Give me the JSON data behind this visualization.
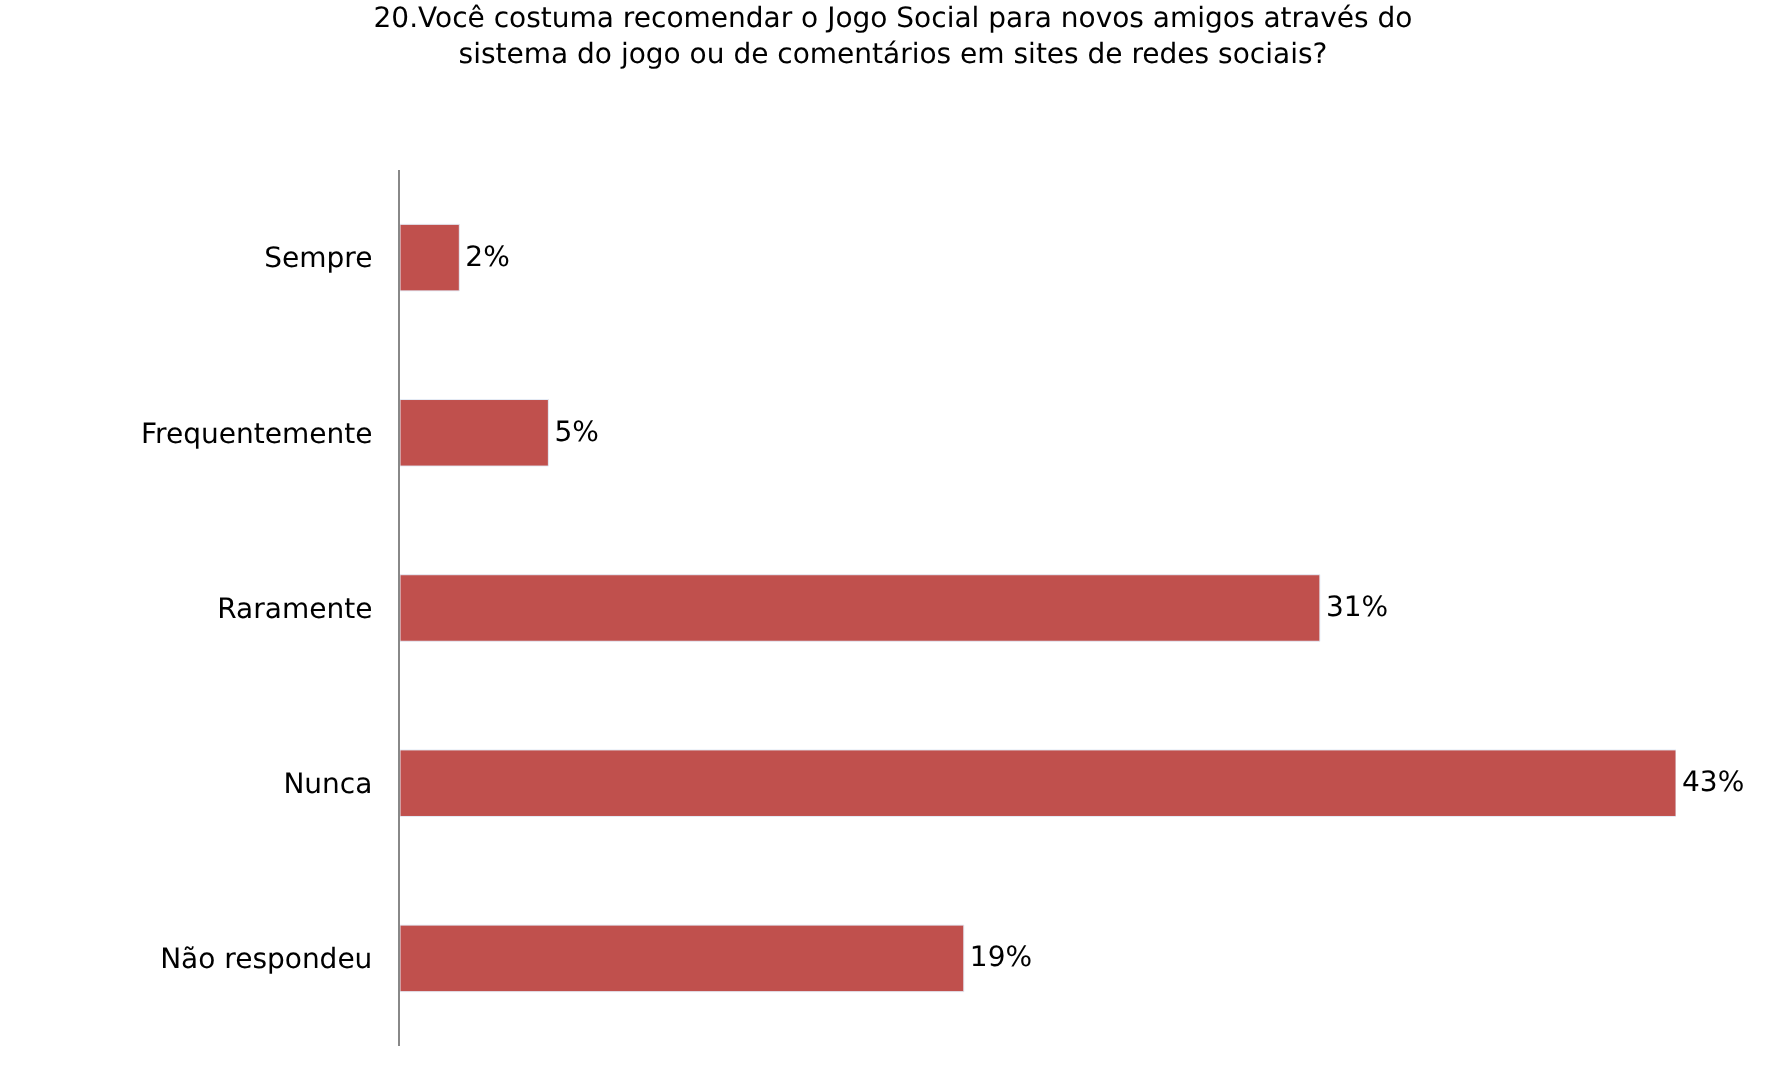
{
  "chart_data": {
    "type": "bar",
    "orientation": "horizontal",
    "title": "20.Você costuma recomendar o Jogo Social para novos amigos através do sistema do jogo ou de comentários em sites de redes sociais?",
    "categories": [
      "Sempre",
      "Frequentemente",
      "Raramente",
      "Nunca",
      "Não respondeu"
    ],
    "values": [
      2,
      5,
      31,
      43,
      19
    ],
    "value_labels": [
      "2%",
      "5%",
      "31%",
      "43%",
      "19%"
    ],
    "color": "#c0504d"
  }
}
